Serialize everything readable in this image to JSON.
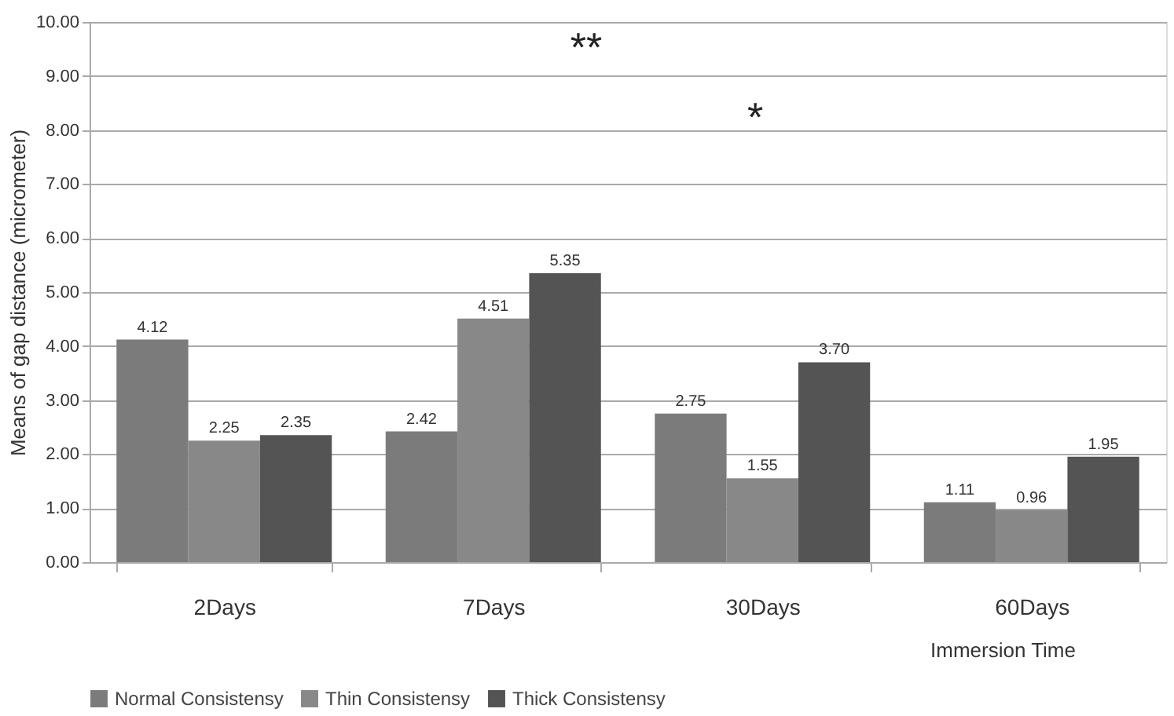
{
  "chart_data": {
    "type": "bar",
    "categories": [
      "2Days",
      "7Days",
      "30Days",
      "60Days"
    ],
    "series": [
      {
        "name": "Normal Consistensy",
        "color": "#7b7b7b",
        "values": [
          4.12,
          2.42,
          2.75,
          1.11
        ],
        "value_labels": [
          "4.12",
          "2.42",
          "2.75",
          "1.11"
        ]
      },
      {
        "name": "Thin Consistensy",
        "color": "#888888",
        "values": [
          2.25,
          4.51,
          1.55,
          0.96
        ],
        "value_labels": [
          "2.25",
          "4.51",
          "1.55",
          "0.96"
        ]
      },
      {
        "name": "Thick Consistensy",
        "color": "#545454",
        "values": [
          2.35,
          5.35,
          3.7,
          1.95
        ],
        "value_labels": [
          "2.35",
          "5.35",
          "3.70",
          "1.95"
        ]
      }
    ],
    "xlabel": "Immersion Time",
    "ylabel": "Means of gap distance (micrometer)",
    "ylim": [
      0,
      10
    ],
    "yticks": [
      {
        "value": 0,
        "label": "0.00"
      },
      {
        "value": 1,
        "label": "1.00"
      },
      {
        "value": 2,
        "label": "2.00"
      },
      {
        "value": 3,
        "label": "3.00"
      },
      {
        "value": 4,
        "label": "4.00"
      },
      {
        "value": 5,
        "label": "5.00"
      },
      {
        "value": 6,
        "label": "6.00"
      },
      {
        "value": 7,
        "label": "7.00"
      },
      {
        "value": 8,
        "label": "8.00"
      },
      {
        "value": 9,
        "label": "9.00"
      },
      {
        "value": 10,
        "label": "10.00"
      }
    ],
    "annotations": [
      "**",
      "*"
    ],
    "grid": "y",
    "legend": "bottom left"
  }
}
